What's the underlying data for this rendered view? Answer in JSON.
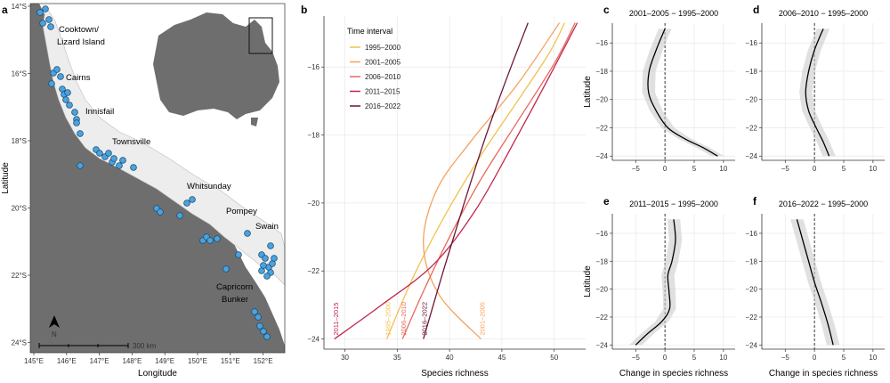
{
  "figure": {
    "panel_letters": [
      "a",
      "b",
      "c",
      "d",
      "e",
      "f"
    ]
  },
  "map": {
    "y_ticks": [
      "14°S",
      "16°S",
      "18°S",
      "20°S",
      "22°S",
      "24°S"
    ],
    "x_ticks": [
      "145°E",
      "146°E",
      "147°E",
      "148°E",
      "149°E",
      "150°E",
      "151°E",
      "152°E"
    ],
    "xlabel": "Longitude",
    "ylabel": "Latitude",
    "scale_label": "300 km",
    "north_label": "N",
    "regions": [
      "Cooktown/",
      "Lizard Island",
      "Cairns",
      "Innisfail",
      "Townsville",
      "Whitsunday",
      "Pompey",
      "Swain",
      "Capricorn",
      "Bunker"
    ],
    "colors": {
      "land": "#6e6e6e",
      "sea": "#ffffff",
      "site": "#4aa3df",
      "site_edge": "#1f4f73"
    }
  },
  "chart_data": [
    {
      "panel": "b",
      "type": "line",
      "xlabel": "Species richness",
      "ylabel": "",
      "xlim": [
        28,
        53
      ],
      "ylim": [
        -24.3,
        -14.5
      ],
      "x_ticks": [
        30,
        35,
        40,
        45,
        50
      ],
      "y_ticks": [
        -16,
        -18,
        -20,
        -22,
        -24
      ],
      "legend_title": "Time interval",
      "legend_position": "top-left",
      "series": [
        {
          "name": "1995–2000",
          "color": "#f2c14e",
          "end_label": "1995–2000",
          "x": [
            34.0,
            36.5,
            39.5,
            43.0,
            46.5,
            49.5,
            51.0
          ],
          "y": [
            -24,
            -22.2,
            -20.4,
            -18.6,
            -17.0,
            -15.6,
            -14.7
          ]
        },
        {
          "name": "2001–2005",
          "color": "#f4a261",
          "end_label": "2001–2005",
          "x": [
            43.0,
            39.0,
            37.5,
            38.8,
            42.0,
            46.5,
            50.5
          ],
          "y": [
            -24,
            -22.7,
            -21.2,
            -19.6,
            -18.2,
            -16.5,
            -14.7
          ]
        },
        {
          "name": "2006–2010",
          "color": "#e9685a",
          "end_label": "2006–2010",
          "x": [
            35.5,
            37.5,
            40.0,
            43.0,
            46.5,
            50.0,
            52.0
          ],
          "y": [
            -24,
            -22.6,
            -21.0,
            -19.3,
            -17.6,
            -15.9,
            -14.7
          ]
        },
        {
          "name": "2011–2015",
          "color": "#c0264a",
          "end_label": "2011–2015",
          "x": [
            29.0,
            33.5,
            38.5,
            42.5,
            46.0,
            49.5,
            52.2
          ],
          "y": [
            -24,
            -23.0,
            -21.8,
            -20.2,
            -18.3,
            -16.3,
            -14.7
          ]
        },
        {
          "name": "2016–2022",
          "color": "#6b1535",
          "end_label": "2016–2022",
          "x": [
            37.5,
            39.5,
            41.5,
            43.5,
            45.5,
            47.5
          ],
          "y": [
            -24,
            -21.9,
            -19.9,
            -18.0,
            -16.3,
            -14.7
          ]
        }
      ]
    },
    {
      "panel": "c",
      "type": "line",
      "title": "2001–2005 − 1995–2000",
      "xlabel": "",
      "ylabel": "Latitude",
      "xlim": [
        -9,
        12
      ],
      "ylim": [
        -24.3,
        -14.6
      ],
      "x_ticks": [
        -5,
        0,
        5,
        10
      ],
      "y_ticks": [
        -16,
        -18,
        -20,
        -22,
        -24
      ],
      "series": [
        {
          "name": "",
          "x": [
            0.0,
            -1.5,
            -2.7,
            -2.8,
            -1.5,
            0.5,
            3.5,
            6.5,
            9.0
          ],
          "y": [
            -15.0,
            -16.5,
            -18.0,
            -19.5,
            -20.8,
            -22.0,
            -22.8,
            -23.4,
            -24.0
          ]
        }
      ]
    },
    {
      "panel": "d",
      "type": "line",
      "title": "2006–2010 − 1995–2000",
      "xlabel": "",
      "ylabel": "",
      "xlim": [
        -9,
        12
      ],
      "ylim": [
        -24.3,
        -14.6
      ],
      "x_ticks": [
        -5,
        0,
        5,
        10
      ],
      "y_ticks": [
        -16,
        -18,
        -20,
        -22,
        -24
      ],
      "series": [
        {
          "name": "",
          "x": [
            1.5,
            0.0,
            -1.0,
            -1.5,
            -1.0,
            0.3,
            1.5,
            2.5
          ],
          "y": [
            -15.0,
            -16.5,
            -18.0,
            -19.5,
            -20.8,
            -22.0,
            -23.0,
            -24.0
          ]
        }
      ]
    },
    {
      "panel": "e",
      "type": "line",
      "title": "2011–2015 − 1995–2000",
      "xlabel": "Change in species richness",
      "ylabel": "Latitude",
      "xlim": [
        -9,
        12
      ],
      "ylim": [
        -24.3,
        -14.6
      ],
      "x_ticks": [
        -5,
        0,
        5,
        10
      ],
      "y_ticks": [
        -16,
        -18,
        -20,
        -22,
        -24
      ],
      "series": [
        {
          "name": "",
          "x": [
            1.5,
            1.8,
            1.2,
            0.5,
            0.7,
            0.8,
            -0.5,
            -3.0,
            -5.0
          ],
          "y": [
            -15.0,
            -16.5,
            -18.0,
            -19.0,
            -20.2,
            -21.4,
            -22.3,
            -23.2,
            -24.0
          ]
        }
      ]
    },
    {
      "panel": "f",
      "type": "line",
      "title": "2016–2022 − 1995–2000",
      "xlabel": "Change in species richness",
      "ylabel": "",
      "xlim": [
        -9,
        12
      ],
      "ylim": [
        -24.3,
        -14.6
      ],
      "x_ticks": [
        -5,
        0,
        5,
        10
      ],
      "y_ticks": [
        -16,
        -18,
        -20,
        -22,
        -24
      ],
      "series": [
        {
          "name": "",
          "x": [
            -3.0,
            -2.0,
            -1.0,
            0.0,
            1.2,
            2.3,
            3.2
          ],
          "y": [
            -15.0,
            -16.5,
            -18.0,
            -19.5,
            -21.0,
            -22.5,
            -24.0
          ]
        }
      ]
    }
  ]
}
